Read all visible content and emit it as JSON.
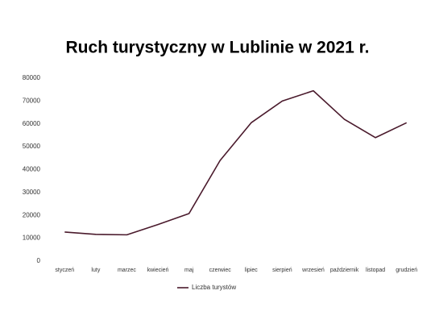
{
  "chart_data": {
    "type": "line",
    "title": "Ruch turystyczny w Lublinie w 2021 r.",
    "categories": [
      "styczeń",
      "luty",
      "marzec",
      "kwiecień",
      "maj",
      "czerwiec",
      "lipiec",
      "sierpień",
      "wrzesień",
      "październik",
      "listopad",
      "grudzień"
    ],
    "series": [
      {
        "name": "Liczba turystów",
        "color": "#4a1a2c",
        "values": [
          12700,
          11700,
          11500,
          16000,
          20800,
          44000,
          60500,
          70000,
          74500,
          62000,
          54000,
          60500
        ]
      }
    ],
    "ylim": [
      0,
      80000
    ],
    "yticks": [
      0,
      10000,
      20000,
      30000,
      40000,
      50000,
      60000,
      70000,
      80000
    ],
    "grid": false,
    "legend": "bottom"
  }
}
